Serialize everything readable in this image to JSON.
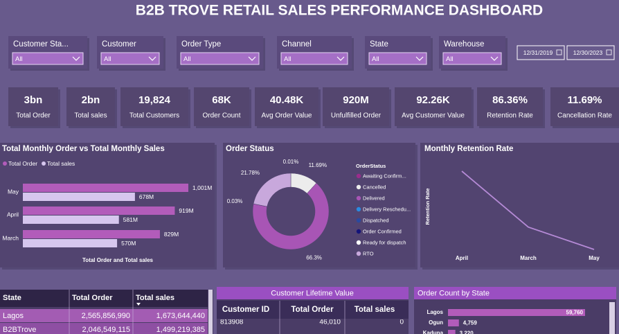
{
  "header": {
    "title": "B2B TROVE RETAIL SALES PERFORMANCE DASHBOARD"
  },
  "filters": [
    {
      "label": "Customer Sta...",
      "value": "All"
    },
    {
      "label": "Customer",
      "value": "All"
    },
    {
      "label": "Order Type",
      "value": "All"
    },
    {
      "label": "Channel",
      "value": "All"
    },
    {
      "label": "State",
      "value": "All"
    },
    {
      "label": "Warehouse",
      "value": "All"
    }
  ],
  "date_range": [
    "12/31/2019",
    "12/30/2023"
  ],
  "kpis": [
    {
      "value": "3bn",
      "label": "Total Order"
    },
    {
      "value": "2bn",
      "label": "Total sales"
    },
    {
      "value": "19,824",
      "label": "Total Customers"
    },
    {
      "value": "68K",
      "label": "Order Count"
    },
    {
      "value": "40.48K",
      "label": "Avg Order Value"
    },
    {
      "value": "920M",
      "label": "Unfulfilled Order"
    },
    {
      "value": "92.26K",
      "label": "Avg Customer Value"
    },
    {
      "value": "86.36%",
      "label": "Retention Rate"
    },
    {
      "value": "11.69%",
      "label": "Cancellation Rate"
    }
  ],
  "monthly_chart": {
    "type": "bar",
    "title": "Total Monthly Order vs Total Monthly Sales",
    "x_label": "Total Order and Total sales",
    "categories": [
      "May",
      "April",
      "March"
    ],
    "series": [
      {
        "name": "Total Order",
        "color": "#b25cba",
        "values": [
          1001,
          919,
          829
        ],
        "value_labels": [
          "1,001M",
          "919M",
          "829M"
        ]
      },
      {
        "name": "Total sales",
        "color": "#d6c6ee",
        "values": [
          678,
          581,
          570
        ],
        "value_labels": [
          "678M",
          "581M",
          "570M"
        ]
      }
    ]
  },
  "order_status": {
    "type": "pie",
    "title": "Order Status",
    "legend_title": "OrderStatus",
    "categories": [
      "Awaiting Confirm...",
      "Cancelled",
      "Delivered",
      "Delivery Reschedu...",
      "Dispatched",
      "Order Confirmed",
      "Ready for dispatch",
      "RTO"
    ],
    "values": [
      0.01,
      11.69,
      66.3,
      0.03,
      null,
      null,
      null,
      21.78
    ],
    "value_labels": [
      "0.01%",
      "11.69%",
      "66.3%",
      "0.03%",
      null,
      null,
      null,
      "21.78%"
    ],
    "colors": [
      "#9b2c8c",
      "#ececec",
      "#a855b5",
      "#2a8ae0",
      "#2a4aa0",
      "#14147a",
      "#ffffff",
      "#c8a8dc"
    ]
  },
  "retention_chart": {
    "type": "line",
    "title": "Monthly Retention Rate",
    "y_label": "Retention Rate",
    "categories": [
      "April",
      "March",
      "May"
    ],
    "values": [
      89.5,
      85.0,
      83.2
    ],
    "color": "#b58ad6"
  },
  "state_table": {
    "columns": [
      "State",
      "Total Order",
      "Total sales"
    ],
    "rows": [
      [
        "Lagos",
        "2,565,856,990",
        "1,673,644,440"
      ],
      [
        "B2BTrove",
        "2,046,549,115",
        "1,499,219,385"
      ]
    ]
  },
  "clv_table": {
    "title": "Customer Lifetime Value",
    "columns": [
      "Customer ID",
      "Total Order",
      "Total sales"
    ],
    "rows": [
      [
        "813908",
        "46,010",
        "0"
      ]
    ]
  },
  "state_orders": {
    "type": "bar",
    "title": "Order Count by State",
    "categories": [
      "Lagos",
      "Ogun",
      "Kaduna"
    ],
    "values": [
      59760,
      4759,
      3220
    ],
    "value_labels": [
      "59,760",
      "4,759",
      "3,220"
    ],
    "color": "#b25cba"
  }
}
